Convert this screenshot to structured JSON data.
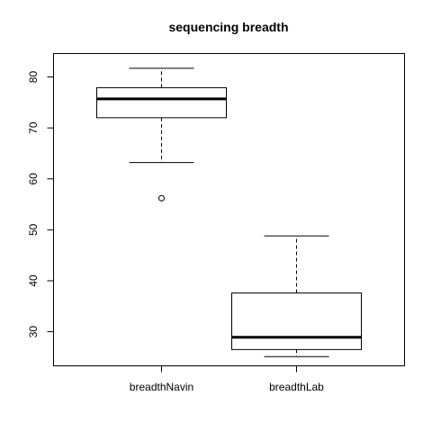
{
  "chart_data": {
    "type": "boxplot",
    "title": "sequencing breadth",
    "xlabel": "",
    "ylabel": "",
    "ylim": [
      23.3,
      84.6
    ],
    "yticks": [
      30,
      40,
      50,
      60,
      70,
      80
    ],
    "grid": false,
    "categories": [
      "breadthNavin",
      "breadthLab"
    ],
    "boxes": [
      {
        "category": "breadthNavin",
        "whisker_low": 63.2,
        "q1": 72.0,
        "median": 75.7,
        "q3": 77.9,
        "whisker_high": 81.7,
        "outliers": [
          56.2
        ]
      },
      {
        "category": "breadthLab",
        "whisker_low": 25.1,
        "q1": 26.5,
        "median": 28.9,
        "q3": 37.6,
        "whisker_high": 48.8,
        "outliers": []
      }
    ]
  }
}
